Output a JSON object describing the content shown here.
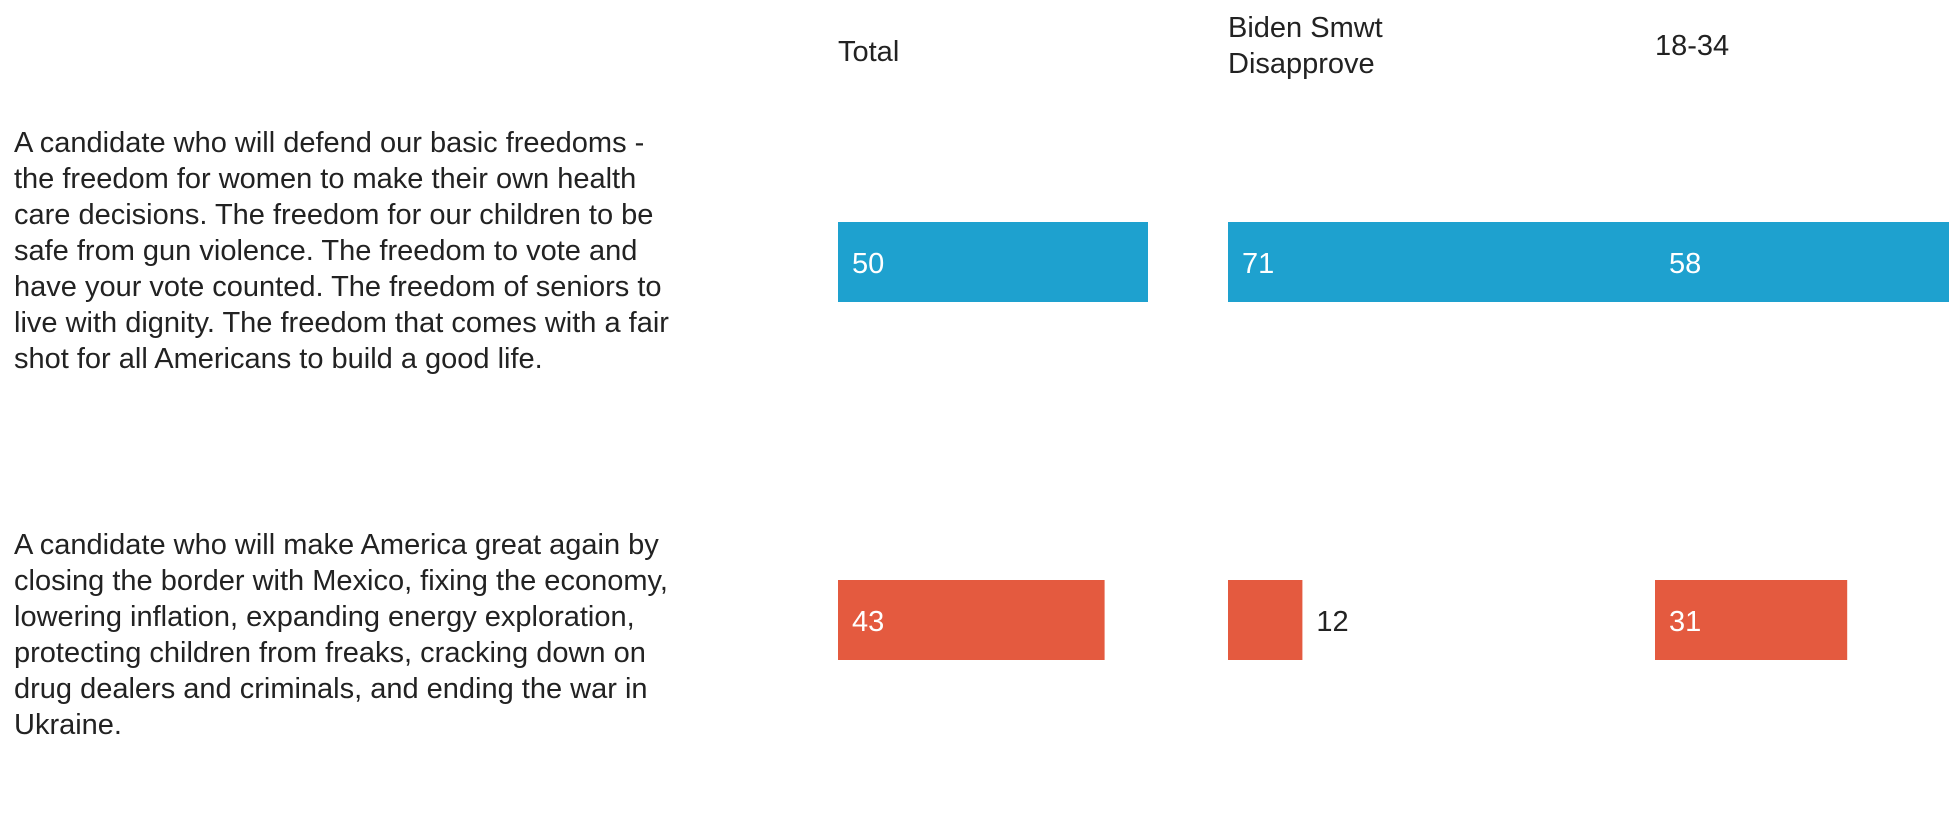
{
  "chart_data": {
    "type": "bar",
    "orientation": "horizontal",
    "columns": [
      "Total",
      "Biden Smwt\nDisapprove",
      "18-34"
    ],
    "rows": [
      "A candidate who will defend our basic freedoms - the freedom for women to make their own health care decisions. The freedom for our children to be safe from gun violence. The freedom to vote and have your vote counted. The freedom of seniors to live with dignity. The freedom that comes with a fair shot for all Americans to build a good life.",
      "A candidate who will make America great again by closing the border with Mexico, fixing the economy, lowering inflation, expanding energy exploration, protecting children from freaks, cracking down on drug dealers and criminals, and ending the war in Ukraine."
    ],
    "series": [
      {
        "values": [
          50,
          71,
          58
        ],
        "color": "#1ea1cf"
      },
      {
        "values": [
          43,
          12,
          31
        ],
        "color": "#e45a3f"
      }
    ],
    "xlim": [
      0,
      100
    ]
  }
}
